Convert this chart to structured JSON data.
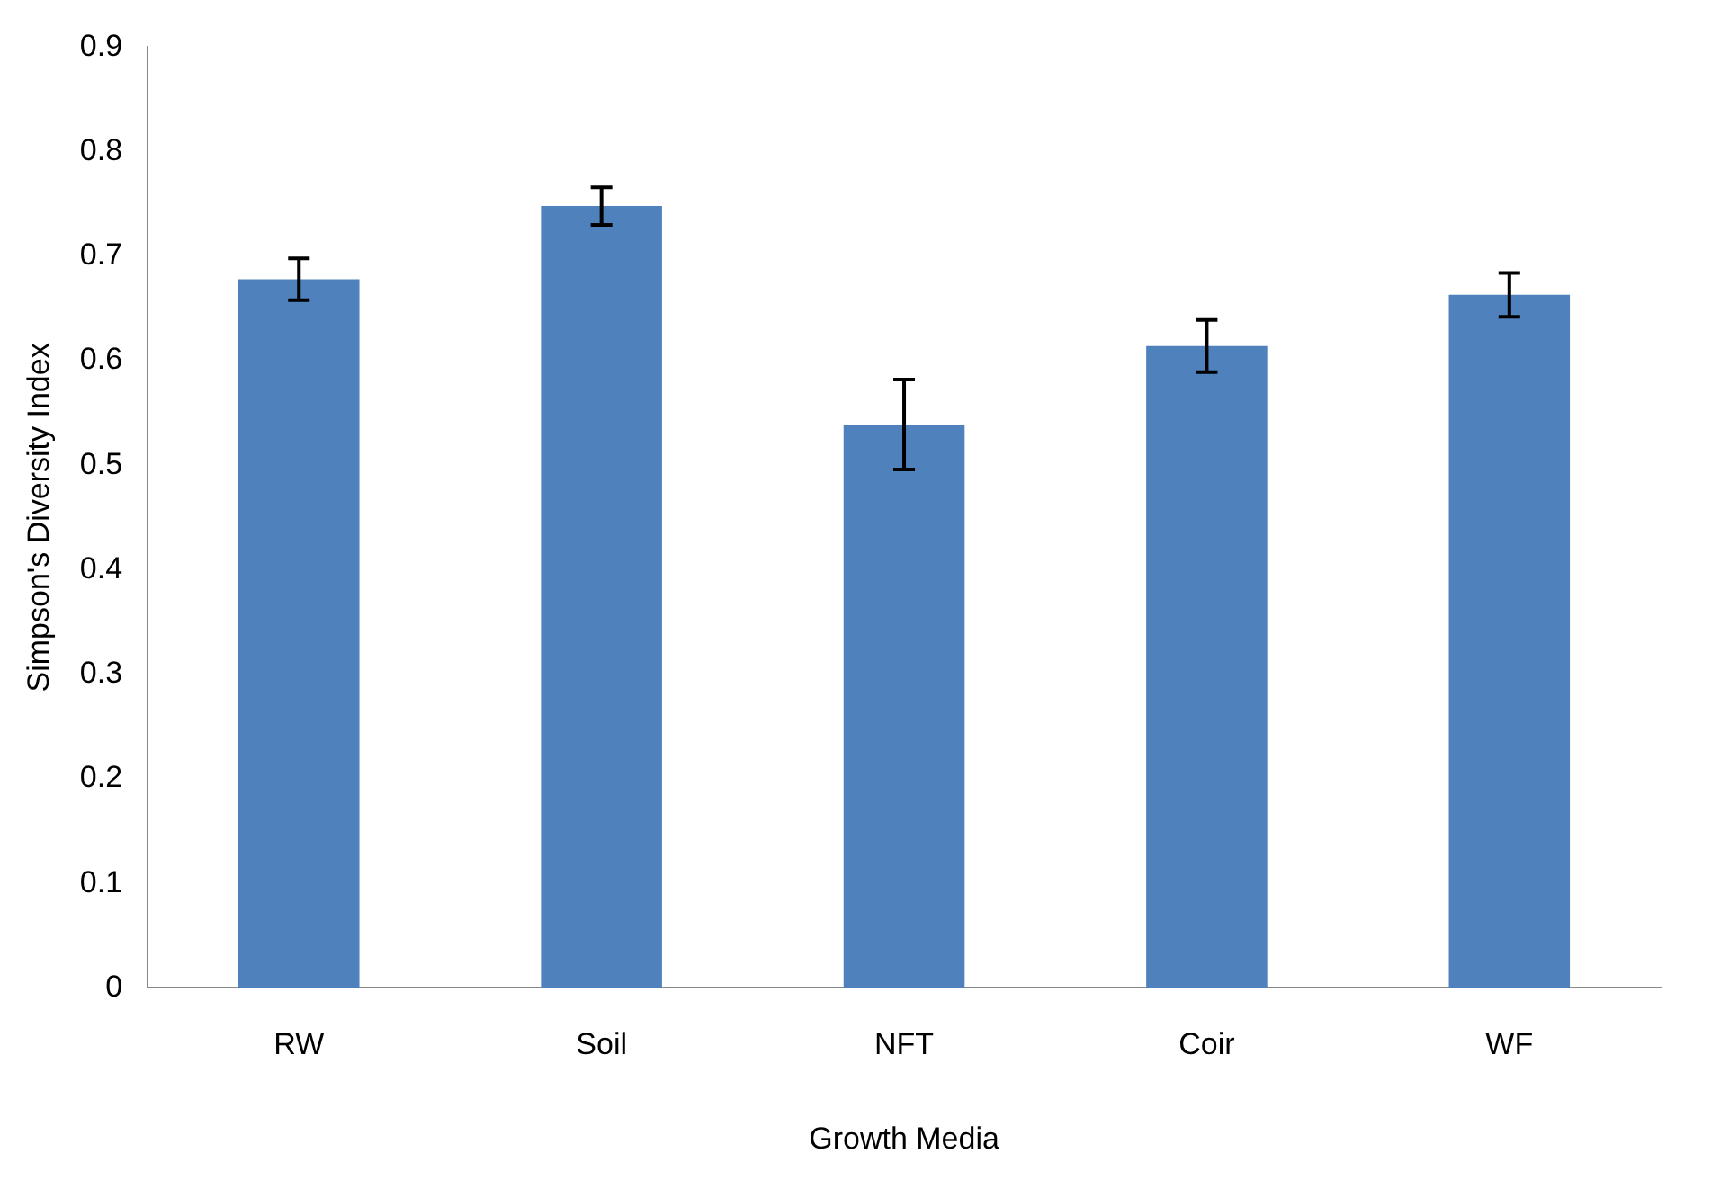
{
  "chart_data": {
    "type": "bar",
    "xlabel": "Growth Media",
    "ylabel": "Simpson's Diversity Index",
    "categories": [
      "RW",
      "Soil",
      "NFT",
      "Coir",
      "WF"
    ],
    "values": [
      0.678,
      0.748,
      0.539,
      0.614,
      0.663
    ],
    "errors": [
      0.02,
      0.018,
      0.043,
      0.025,
      0.021
    ],
    "color": "#4f81bd",
    "ylim": [
      0,
      0.9
    ],
    "yticks": [
      0,
      0.1,
      0.2,
      0.3,
      0.4,
      0.5,
      0.6,
      0.7,
      0.8,
      0.9
    ],
    "grid": false,
    "legend": false
  }
}
